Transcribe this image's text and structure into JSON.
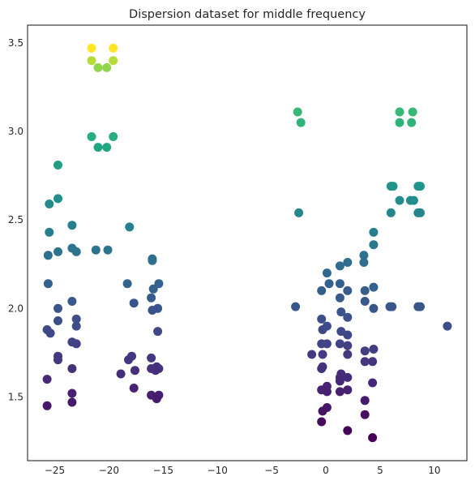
{
  "chart_data": {
    "type": "scatter",
    "title": "Dispersion dataset for middle frequency",
    "xlabel": "",
    "ylabel": "",
    "xlim": [
      -27.5,
      13.0
    ],
    "ylim": [
      1.14,
      3.6
    ],
    "xticks": [
      -25,
      -20,
      -15,
      -10,
      -5,
      0,
      5,
      10
    ],
    "xtick_labels": [
      "−25",
      "−20",
      "−15",
      "−10",
      "−5",
      "0",
      "5",
      "10"
    ],
    "yticks": [
      1.5,
      2.0,
      2.5,
      3.0,
      3.5
    ],
    "ytick_labels": [
      "1.5",
      "2.0",
      "2.5",
      "3.0",
      "3.5"
    ],
    "grid": false,
    "colormap": "viridis",
    "color_by": "y",
    "points": [
      {
        "x": -21.6,
        "y": 3.47
      },
      {
        "x": -19.6,
        "y": 3.47
      },
      {
        "x": -21.6,
        "y": 3.4
      },
      {
        "x": -19.6,
        "y": 3.4
      },
      {
        "x": -21.0,
        "y": 3.36
      },
      {
        "x": -20.2,
        "y": 3.36
      },
      {
        "x": -21.6,
        "y": 2.97
      },
      {
        "x": -19.6,
        "y": 2.97
      },
      {
        "x": -21.0,
        "y": 2.91
      },
      {
        "x": -20.2,
        "y": 2.91
      },
      {
        "x": -24.7,
        "y": 2.81
      },
      {
        "x": -24.7,
        "y": 2.62
      },
      {
        "x": -25.5,
        "y": 2.59
      },
      {
        "x": -23.4,
        "y": 2.47
      },
      {
        "x": -18.1,
        "y": 2.46
      },
      {
        "x": -25.5,
        "y": 2.43
      },
      {
        "x": -23.4,
        "y": 2.34
      },
      {
        "x": -21.2,
        "y": 2.33
      },
      {
        "x": -20.1,
        "y": 2.33
      },
      {
        "x": -24.7,
        "y": 2.32
      },
      {
        "x": -23.0,
        "y": 2.32
      },
      {
        "x": -25.6,
        "y": 2.3
      },
      {
        "x": -16.0,
        "y": 2.28
      },
      {
        "x": -16.0,
        "y": 2.27
      },
      {
        "x": -25.6,
        "y": 2.14
      },
      {
        "x": -18.3,
        "y": 2.14
      },
      {
        "x": -15.4,
        "y": 2.14
      },
      {
        "x": -15.9,
        "y": 2.11
      },
      {
        "x": -16.1,
        "y": 2.06
      },
      {
        "x": -23.4,
        "y": 2.04
      },
      {
        "x": -17.7,
        "y": 2.03
      },
      {
        "x": -24.7,
        "y": 2.0
      },
      {
        "x": -15.5,
        "y": 2.0
      },
      {
        "x": -16.0,
        "y": 1.99
      },
      {
        "x": -23.0,
        "y": 1.94
      },
      {
        "x": -24.7,
        "y": 1.93
      },
      {
        "x": -23.0,
        "y": 1.9
      },
      {
        "x": -25.7,
        "y": 1.88
      },
      {
        "x": -25.4,
        "y": 1.86
      },
      {
        "x": -15.5,
        "y": 1.87
      },
      {
        "x": -23.4,
        "y": 1.81
      },
      {
        "x": -23.0,
        "y": 1.8
      },
      {
        "x": -17.9,
        "y": 1.73
      },
      {
        "x": -24.7,
        "y": 1.73
      },
      {
        "x": -24.7,
        "y": 1.71
      },
      {
        "x": -16.1,
        "y": 1.72
      },
      {
        "x": -18.2,
        "y": 1.71
      },
      {
        "x": -15.6,
        "y": 1.67
      },
      {
        "x": -23.4,
        "y": 1.66
      },
      {
        "x": -16.1,
        "y": 1.66
      },
      {
        "x": -15.4,
        "y": 1.66
      },
      {
        "x": -17.6,
        "y": 1.65
      },
      {
        "x": -15.7,
        "y": 1.65
      },
      {
        "x": -18.9,
        "y": 1.63
      },
      {
        "x": -25.7,
        "y": 1.6
      },
      {
        "x": -17.7,
        "y": 1.55
      },
      {
        "x": -23.4,
        "y": 1.52
      },
      {
        "x": -16.1,
        "y": 1.51
      },
      {
        "x": -15.4,
        "y": 1.51
      },
      {
        "x": -15.6,
        "y": 1.49
      },
      {
        "x": -23.4,
        "y": 1.47
      },
      {
        "x": -25.7,
        "y": 1.45
      },
      {
        "x": -2.6,
        "y": 3.11
      },
      {
        "x": -2.3,
        "y": 3.05
      },
      {
        "x": 6.8,
        "y": 3.11
      },
      {
        "x": 8.0,
        "y": 3.11
      },
      {
        "x": 6.8,
        "y": 3.05
      },
      {
        "x": 7.9,
        "y": 3.05
      },
      {
        "x": 6.0,
        "y": 2.69
      },
      {
        "x": 6.2,
        "y": 2.69
      },
      {
        "x": 8.5,
        "y": 2.69
      },
      {
        "x": 8.7,
        "y": 2.69
      },
      {
        "x": 6.8,
        "y": 2.61
      },
      {
        "x": 7.8,
        "y": 2.61
      },
      {
        "x": 8.1,
        "y": 2.61
      },
      {
        "x": -2.5,
        "y": 2.54
      },
      {
        "x": 6.0,
        "y": 2.54
      },
      {
        "x": 8.5,
        "y": 2.54
      },
      {
        "x": 8.7,
        "y": 2.54
      },
      {
        "x": 4.4,
        "y": 2.43
      },
      {
        "x": 4.4,
        "y": 2.36
      },
      {
        "x": 3.5,
        "y": 2.3
      },
      {
        "x": 2.0,
        "y": 2.26
      },
      {
        "x": 1.3,
        "y": 2.24
      },
      {
        "x": 3.5,
        "y": 2.26
      },
      {
        "x": 0.1,
        "y": 2.2
      },
      {
        "x": -0.4,
        "y": 2.1
      },
      {
        "x": 0.3,
        "y": 2.14
      },
      {
        "x": 1.3,
        "y": 2.14
      },
      {
        "x": 3.6,
        "y": 2.1
      },
      {
        "x": 2.0,
        "y": 2.1
      },
      {
        "x": 4.4,
        "y": 2.12
      },
      {
        "x": 1.3,
        "y": 2.06
      },
      {
        "x": 3.6,
        "y": 2.04
      },
      {
        "x": -2.8,
        "y": 2.01
      },
      {
        "x": 4.4,
        "y": 2.0
      },
      {
        "x": 5.9,
        "y": 2.01
      },
      {
        "x": 6.1,
        "y": 2.01
      },
      {
        "x": 8.5,
        "y": 2.01
      },
      {
        "x": 8.7,
        "y": 2.01
      },
      {
        "x": 1.4,
        "y": 1.98
      },
      {
        "x": 2.0,
        "y": 1.95
      },
      {
        "x": -0.4,
        "y": 1.94
      },
      {
        "x": 11.2,
        "y": 1.9
      },
      {
        "x": -0.3,
        "y": 1.88
      },
      {
        "x": 0.1,
        "y": 1.9
      },
      {
        "x": 1.4,
        "y": 1.87
      },
      {
        "x": 2.0,
        "y": 1.85
      },
      {
        "x": -0.4,
        "y": 1.8
      },
      {
        "x": 0.1,
        "y": 1.8
      },
      {
        "x": 1.3,
        "y": 1.8
      },
      {
        "x": 2.0,
        "y": 1.79
      },
      {
        "x": 4.4,
        "y": 1.77
      },
      {
        "x": 3.6,
        "y": 1.76
      },
      {
        "x": -1.3,
        "y": 1.74
      },
      {
        "x": -0.3,
        "y": 1.74
      },
      {
        "x": 2.0,
        "y": 1.74
      },
      {
        "x": 4.3,
        "y": 1.7
      },
      {
        "x": 3.6,
        "y": 1.7
      },
      {
        "x": -0.3,
        "y": 1.67
      },
      {
        "x": -0.4,
        "y": 1.66
      },
      {
        "x": 1.4,
        "y": 1.63
      },
      {
        "x": 1.3,
        "y": 1.61
      },
      {
        "x": 2.0,
        "y": 1.61
      },
      {
        "x": 1.3,
        "y": 1.59
      },
      {
        "x": 4.3,
        "y": 1.58
      },
      {
        "x": 0.1,
        "y": 1.56
      },
      {
        "x": -0.4,
        "y": 1.54
      },
      {
        "x": 0.1,
        "y": 1.53
      },
      {
        "x": 1.3,
        "y": 1.53
      },
      {
        "x": 2.0,
        "y": 1.54
      },
      {
        "x": 3.6,
        "y": 1.48
      },
      {
        "x": 0.1,
        "y": 1.44
      },
      {
        "x": -0.3,
        "y": 1.42
      },
      {
        "x": 3.6,
        "y": 1.4
      },
      {
        "x": -0.4,
        "y": 1.36
      },
      {
        "x": 2.0,
        "y": 1.31
      },
      {
        "x": 4.3,
        "y": 1.27
      }
    ]
  }
}
